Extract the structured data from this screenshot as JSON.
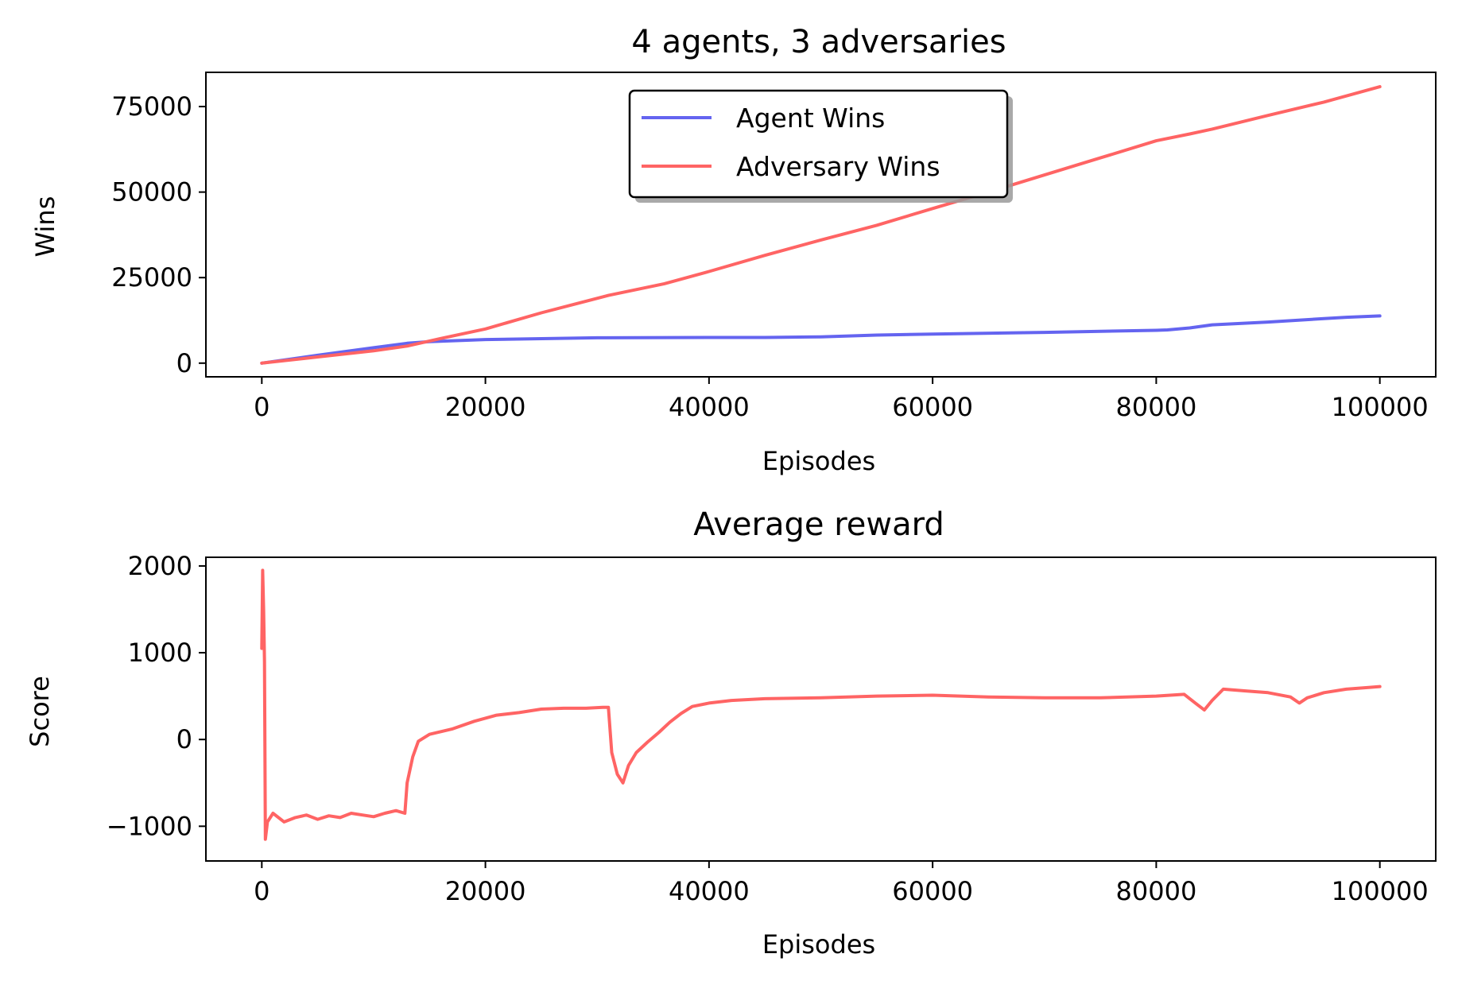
{
  "chart_data": [
    {
      "type": "line",
      "title": "4 agents, 3 adversaries",
      "xlabel": "Episodes",
      "ylabel": "Wins",
      "xlim": [
        -5000,
        105000
      ],
      "ylim": [
        -4000,
        85000
      ],
      "xticks": [
        {
          "value": 0,
          "label": "0"
        },
        {
          "value": 20000,
          "label": "20000"
        },
        {
          "value": 40000,
          "label": "40000"
        },
        {
          "value": 60000,
          "label": "60000"
        },
        {
          "value": 80000,
          "label": "80000"
        },
        {
          "value": 100000,
          "label": "100000"
        }
      ],
      "yticks": [
        {
          "value": 0,
          "label": "0"
        },
        {
          "value": 25000,
          "label": "25000"
        },
        {
          "value": 50000,
          "label": "50000"
        },
        {
          "value": 75000,
          "label": "75000"
        }
      ],
      "grid": false,
      "legend": {
        "position": "upper center",
        "shadow": true
      },
      "series": [
        {
          "name": "Agent Wins",
          "color": "#6464f0",
          "points": [
            [
              0,
              0
            ],
            [
              5000,
              2300
            ],
            [
              10000,
              4500
            ],
            [
              13000,
              5800
            ],
            [
              15000,
              6300
            ],
            [
              20000,
              6900
            ],
            [
              30000,
              7400
            ],
            [
              40000,
              7500
            ],
            [
              45000,
              7500
            ],
            [
              50000,
              7700
            ],
            [
              55000,
              8200
            ],
            [
              60000,
              8500
            ],
            [
              70000,
              9000
            ],
            [
              80000,
              9600
            ],
            [
              81000,
              9700
            ],
            [
              83000,
              10300
            ],
            [
              85000,
              11200
            ],
            [
              90000,
              12000
            ],
            [
              95000,
              13000
            ],
            [
              97000,
              13400
            ],
            [
              100000,
              13800
            ]
          ]
        },
        {
          "name": "Adversary Wins",
          "color": "#ff6464",
          "points": [
            [
              0,
              0
            ],
            [
              5000,
              1800
            ],
            [
              10000,
              3600
            ],
            [
              13000,
              5000
            ],
            [
              16000,
              7200
            ],
            [
              20000,
              10000
            ],
            [
              25000,
              14700
            ],
            [
              31000,
              19800
            ],
            [
              36000,
              23200
            ],
            [
              40000,
              26800
            ],
            [
              45000,
              31500
            ],
            [
              50000,
              36000
            ],
            [
              55000,
              40300
            ],
            [
              60000,
              45200
            ],
            [
              65000,
              50000
            ],
            [
              70000,
              55000
            ],
            [
              75000,
              60000
            ],
            [
              80000,
              65000
            ],
            [
              83000,
              67000
            ],
            [
              85000,
              68400
            ],
            [
              90000,
              72400
            ],
            [
              95000,
              76300
            ],
            [
              100000,
              80800
            ]
          ]
        }
      ]
    },
    {
      "type": "line",
      "title": "Average reward",
      "xlabel": "Episodes",
      "ylabel": "Score",
      "xlim": [
        -5000,
        105000
      ],
      "ylim": [
        -1400,
        2100
      ],
      "xticks": [
        {
          "value": 0,
          "label": "0"
        },
        {
          "value": 20000,
          "label": "20000"
        },
        {
          "value": 40000,
          "label": "40000"
        },
        {
          "value": 60000,
          "label": "60000"
        },
        {
          "value": 80000,
          "label": "80000"
        },
        {
          "value": 100000,
          "label": "100000"
        }
      ],
      "yticks": [
        {
          "value": -1000,
          "label": "−1000"
        },
        {
          "value": 0,
          "label": "0"
        },
        {
          "value": 1000,
          "label": "1000"
        },
        {
          "value": 2000,
          "label": "2000"
        }
      ],
      "grid": false,
      "series": [
        {
          "color": "#ff6464",
          "points": [
            [
              0,
              1050
            ],
            [
              80,
              1950
            ],
            [
              160,
              1500
            ],
            [
              240,
              900
            ],
            [
              320,
              -1150
            ],
            [
              500,
              -950
            ],
            [
              1000,
              -850
            ],
            [
              2000,
              -950
            ],
            [
              3000,
              -900
            ],
            [
              4000,
              -870
            ],
            [
              5000,
              -920
            ],
            [
              6000,
              -880
            ],
            [
              7000,
              -900
            ],
            [
              8000,
              -850
            ],
            [
              9000,
              -870
            ],
            [
              10000,
              -890
            ],
            [
              11000,
              -850
            ],
            [
              12000,
              -820
            ],
            [
              12800,
              -850
            ],
            [
              13000,
              -500
            ],
            [
              13500,
              -200
            ],
            [
              14000,
              -20
            ],
            [
              15000,
              60
            ],
            [
              17000,
              120
            ],
            [
              19000,
              210
            ],
            [
              21000,
              280
            ],
            [
              23000,
              310
            ],
            [
              25000,
              350
            ],
            [
              27000,
              360
            ],
            [
              29000,
              360
            ],
            [
              30500,
              370
            ],
            [
              31000,
              370
            ],
            [
              31300,
              -150
            ],
            [
              31800,
              -400
            ],
            [
              32300,
              -500
            ],
            [
              32800,
              -300
            ],
            [
              33500,
              -150
            ],
            [
              34500,
              -30
            ],
            [
              35500,
              80
            ],
            [
              36500,
              200
            ],
            [
              37500,
              300
            ],
            [
              38500,
              380
            ],
            [
              40000,
              420
            ],
            [
              42000,
              450
            ],
            [
              45000,
              470
            ],
            [
              50000,
              480
            ],
            [
              55000,
              500
            ],
            [
              60000,
              510
            ],
            [
              65000,
              490
            ],
            [
              70000,
              480
            ],
            [
              75000,
              480
            ],
            [
              80000,
              500
            ],
            [
              82500,
              520
            ],
            [
              83500,
              420
            ],
            [
              84300,
              340
            ],
            [
              85000,
              450
            ],
            [
              86000,
              580
            ],
            [
              88000,
              560
            ],
            [
              90000,
              540
            ],
            [
              92000,
              490
            ],
            [
              92800,
              420
            ],
            [
              93500,
              480
            ],
            [
              95000,
              540
            ],
            [
              97000,
              580
            ],
            [
              99000,
              600
            ],
            [
              100000,
              610
            ]
          ]
        }
      ]
    }
  ]
}
